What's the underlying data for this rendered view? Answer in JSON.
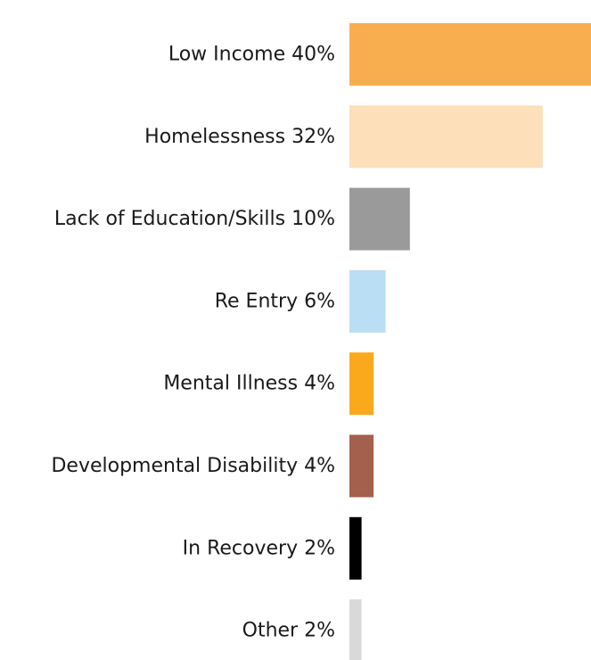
{
  "chart_data": {
    "type": "bar",
    "orientation": "horizontal",
    "categories": [
      "Low Income",
      "Homelessness",
      "Lack of Education/Skills",
      "Re Entry",
      "Mental Illness",
      "Developmental Disability",
      "In Recovery",
      "Other"
    ],
    "values": [
      40,
      32,
      10,
      6,
      4,
      4,
      2,
      2
    ],
    "labels": [
      "Low Income 40%",
      "Homelessness 32%",
      "Lack of Education/Skills 10%",
      "Re Entry 6%",
      "Mental Illness 4%",
      "Developmental Disability 4%",
      "In Recovery 2%",
      "Other 2%"
    ],
    "colors": [
      "#F8AD4F",
      "#FDDFBA",
      "#9A9A9A",
      "#BADFF5",
      "#FAA91C",
      "#A4604D",
      "#000000",
      "#D9D9D9"
    ],
    "unit": "%",
    "title": "",
    "xlabel": "",
    "ylabel": "",
    "xlim": [
      0,
      40
    ],
    "grid": false,
    "legend": "none"
  }
}
